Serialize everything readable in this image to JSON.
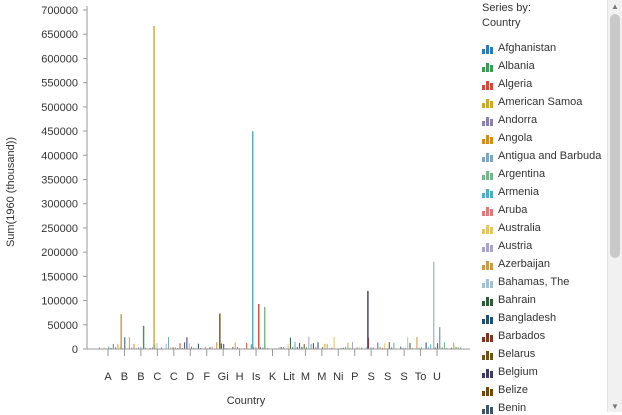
{
  "chart_data": {
    "type": "bar",
    "xlabel": "Country",
    "ylabel": "Sum(1960 (thousand))",
    "ylim": [
      0,
      700000
    ],
    "yticks": [
      0,
      50000,
      100000,
      150000,
      200000,
      250000,
      300000,
      350000,
      400000,
      450000,
      500000,
      550000,
      600000,
      650000,
      700000
    ],
    "xtick_labels": [
      "A",
      "B",
      "B",
      "C",
      "C",
      "D",
      "F",
      "Gi",
      "H",
      "Is",
      "K",
      "Lit",
      "M",
      "M",
      "Ni",
      "P",
      "S",
      "S",
      "S",
      "To",
      "U"
    ],
    "notable_bars": [
      {
        "group": "C",
        "value": 667000
      },
      {
        "group": "Is",
        "value": 450000
      },
      {
        "group": "U",
        "value": 180000
      },
      {
        "group": "S",
        "value": 120000
      },
      {
        "group": "Is",
        "value": 93000
      },
      {
        "group": "Is",
        "value": 87000
      },
      {
        "group": "B",
        "value": 72000
      },
      {
        "group": "Gi",
        "value": 73000
      },
      {
        "group": "B",
        "value": 48000
      },
      {
        "group": "U",
        "value": 45000
      }
    ],
    "grid": false
  },
  "legend": {
    "title": "Series by:\nCountry",
    "items": [
      {
        "name": "Afghanistan",
        "color": "#2b7bb9"
      },
      {
        "name": "Albania",
        "color": "#3a9b57"
      },
      {
        "name": "Algeria",
        "color": "#d2483a"
      },
      {
        "name": "American Samoa",
        "color": "#c8a92d"
      },
      {
        "name": "Andorra",
        "color": "#8b7fb0"
      },
      {
        "name": "Angola",
        "color": "#d68b1e"
      },
      {
        "name": "Antigua and Barbuda",
        "color": "#7ea5c2"
      },
      {
        "name": "Argentina",
        "color": "#78b58d"
      },
      {
        "name": "Armenia",
        "color": "#4faec3"
      },
      {
        "name": "Aruba",
        "color": "#e07a7a"
      },
      {
        "name": "Australia",
        "color": "#e3c66a"
      },
      {
        "name": "Austria",
        "color": "#aaa4c8"
      },
      {
        "name": "Azerbaijan",
        "color": "#c89b4a"
      },
      {
        "name": "Bahamas, The",
        "color": "#a5bfd3"
      },
      {
        "name": "Bahrain",
        "color": "#2f5a3a"
      },
      {
        "name": "Bangladesh",
        "color": "#1f4e6e"
      },
      {
        "name": "Barbados",
        "color": "#7b3522"
      },
      {
        "name": "Belarus",
        "color": "#6b5416"
      },
      {
        "name": "Belgium",
        "color": "#3e3a5e"
      },
      {
        "name": "Belize",
        "color": "#6e4810"
      },
      {
        "name": "Benin",
        "color": "#3d5566"
      }
    ]
  }
}
